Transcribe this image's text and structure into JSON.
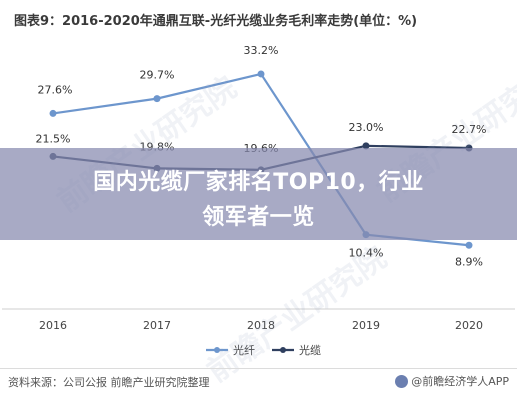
{
  "chart_data": {
    "type": "line",
    "title": "图表9：2016-2020年通鼎互联-光纤光缆业务毛利率走势(单位：%)",
    "categories": [
      "2016",
      "2017",
      "2018",
      "2019",
      "2020"
    ],
    "series": [
      {
        "name": "光纤",
        "values": [
          27.6,
          29.7,
          33.2,
          10.4,
          8.9
        ],
        "labels": [
          "27.6%",
          "29.7%",
          "33.2%",
          "10.4%",
          "8.9%"
        ],
        "color": "#6d96cd"
      },
      {
        "name": "光缆",
        "values": [
          21.5,
          19.8,
          19.6,
          23.0,
          22.7
        ],
        "labels": [
          "21.5%",
          "19.8%",
          "19.6%",
          "23.0%",
          "22.7%"
        ],
        "color": "#2f3f5f"
      }
    ],
    "ylim": [
      0,
      40
    ],
    "grid": false,
    "legend": "bottom"
  },
  "banner": {
    "line1": "国内光缆厂家排名TOP10，行业",
    "line2": "领军者一览",
    "color": "#8789af"
  },
  "watermark": {
    "text": "前瞻产业研究院"
  },
  "footer": {
    "source": "资料来源：公司公报 前瞻产业研究院整理",
    "credit": "@前瞻经济学人APP"
  }
}
